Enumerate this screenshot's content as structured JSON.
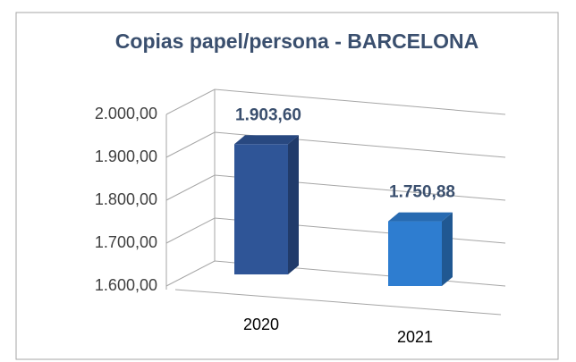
{
  "chart_data": {
    "type": "bar3d",
    "title": "Copias papel/persona - BARCELONA",
    "categories": [
      "2020",
      "2021"
    ],
    "values": [
      1903.6,
      1750.88
    ],
    "value_labels": [
      "1.903,60",
      "1.750,88"
    ],
    "colors": [
      "#2f5597",
      "#2e7dd0"
    ],
    "ylim": [
      1600,
      2000
    ],
    "yticks": [
      {
        "value": 1600,
        "label": "1.600,00"
      },
      {
        "value": 1700,
        "label": "1.700,00"
      },
      {
        "value": 1800,
        "label": "1.800,00"
      },
      {
        "value": 1900,
        "label": "1.900,00"
      },
      {
        "value": 2000,
        "label": "2.000,00"
      }
    ],
    "grid": true
  }
}
